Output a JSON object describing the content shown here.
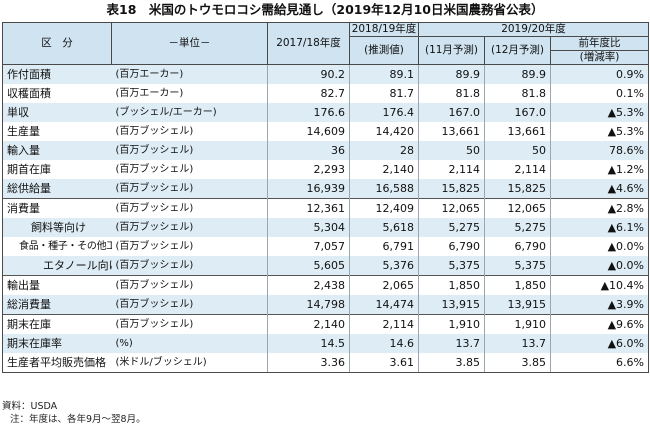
{
  "title": "表18　米国のトウモロコシ需給見通し（2019年12月10日米国農務省公表）",
  "header": {
    "kubun": "区　分",
    "unit": "－単位－",
    "col1": "2017/18年度",
    "col2_year": "2018/19年度",
    "col2_sub": "(推測値)",
    "col3_year": "2019/20年度",
    "col3a": "(11月予測)",
    "col3b": "(12月予測)",
    "col4_line1": "前年度比",
    "col4_line2": "(増減率)"
  },
  "rows": [
    {
      "item": "作付面積",
      "unit": "(百万エーカー)",
      "v1": "90.2",
      "v2": "89.1",
      "v3": "89.9",
      "v4": "89.9",
      "chg": "0.9%"
    },
    {
      "item": "収穫面積",
      "unit": "(百万エーカー)",
      "v1": "82.7",
      "v2": "81.7",
      "v3": "81.8",
      "v4": "81.8",
      "chg": "0.1%"
    },
    {
      "item": "単収",
      "unit": "(ブッシェル/エーカー)",
      "v1": "176.6",
      "v2": "176.4",
      "v3": "167.0",
      "v4": "167.0",
      "chg": "▲5.3%"
    },
    {
      "item": "生産量",
      "unit": "(百万ブッシェル)",
      "v1": "14,609",
      "v2": "14,420",
      "v3": "13,661",
      "v4": "13,661",
      "chg": "▲5.3%"
    },
    {
      "item": "輸入量",
      "unit": "(百万ブッシェル)",
      "v1": "36",
      "v2": "28",
      "v3": "50",
      "v4": "50",
      "chg": "78.6%"
    },
    {
      "item": "期首在庫",
      "unit": "(百万ブッシェル)",
      "v1": "2,293",
      "v2": "2,140",
      "v3": "2,114",
      "v4": "2,114",
      "chg": "▲1.2%"
    },
    {
      "item": "総供給量",
      "unit": "(百万ブッシェル)",
      "v1": "16,939",
      "v2": "16,588",
      "v3": "15,825",
      "v4": "15,825",
      "chg": "▲4.6%"
    },
    {
      "item": "消費量",
      "unit": "(百万ブッシェル)",
      "v1": "12,361",
      "v2": "12,409",
      "v3": "12,065",
      "v4": "12,065",
      "chg": "▲2.8%"
    },
    {
      "item": "飼料等向け",
      "unit": "(百万ブッシェル)",
      "v1": "5,304",
      "v2": "5,618",
      "v3": "5,275",
      "v4": "5,275",
      "chg": "▲6.1%"
    },
    {
      "item": "食品・種子・その他工業向け",
      "unit": "(百万ブッシェル)",
      "v1": "7,057",
      "v2": "6,791",
      "v3": "6,790",
      "v4": "6,790",
      "chg": "▲0.0%"
    },
    {
      "item": "エタノール向け",
      "unit": "(百万ブッシェル)",
      "v1": "5,605",
      "v2": "5,376",
      "v3": "5,375",
      "v4": "5,375",
      "chg": "▲0.0%"
    },
    {
      "item": "輸出量",
      "unit": "(百万ブッシェル)",
      "v1": "2,438",
      "v2": "2,065",
      "v3": "1,850",
      "v4": "1,850",
      "chg": "▲10.4%"
    },
    {
      "item": "総消費量",
      "unit": "(百万ブッシェル)",
      "v1": "14,798",
      "v2": "14,474",
      "v3": "13,915",
      "v4": "13,915",
      "chg": "▲3.9%"
    },
    {
      "item": "期末在庫",
      "unit": "(百万ブッシェル)",
      "v1": "2,140",
      "v2": "2,114",
      "v3": "1,910",
      "v4": "1,910",
      "chg": "▲9.6%"
    },
    {
      "item": "期末在庫率",
      "unit": "(%)",
      "v1": "14.5",
      "v2": "14.6",
      "v3": "13.7",
      "v4": "13.7",
      "chg": "▲6.0%"
    },
    {
      "item": "生産者平均販売価格",
      "unit": "(米ドル/ブッシェル)",
      "v1": "3.36",
      "v2": "3.61",
      "v3": "3.85",
      "v4": "3.85",
      "chg": "6.6%"
    }
  ],
  "notes": {
    "source": "資料：USDA",
    "note": "注：年度は、各年9月～翌8月。"
  }
}
